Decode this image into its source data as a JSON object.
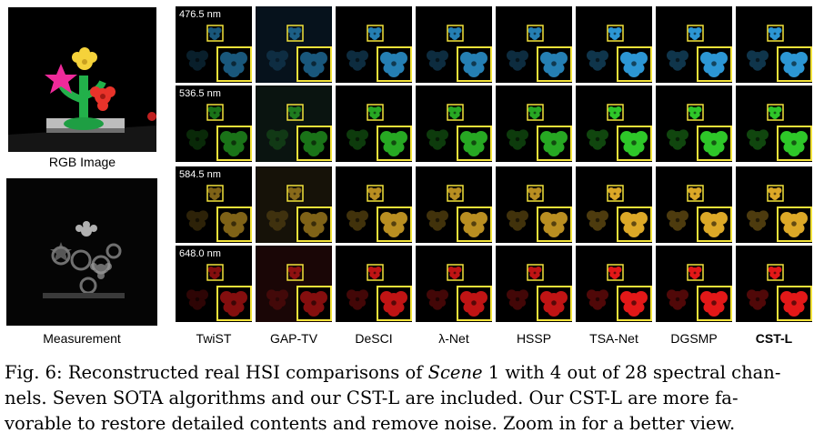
{
  "left_panels": {
    "rgb_label": "RGB Image",
    "measurement_label": "Measurement"
  },
  "wavelengths": [
    "476.5 nm",
    "536.5 nm",
    "584.5 nm",
    "648.0 nm"
  ],
  "row_colors": [
    "#2f9fe0",
    "#31d22c",
    "#e8b22a",
    "#f01a1a"
  ],
  "methods": [
    "TwiST",
    "GAP-TV",
    "DeSCI",
    "λ-Net",
    "HSSP",
    "TSA-Net",
    "DGSMP",
    "CST-L"
  ],
  "caption": {
    "line1_pre": "Fig. 6: Reconstructed real HSI comparisons of ",
    "line1_em": "Scene",
    "line1_post": " 1 with 4 out of 28 spectral chan-",
    "line2": "nels. Seven SOTA algorithms and our CST-L are included. Our CST-L are more fa-",
    "line3": "vorable to restore detailed contents and remove noise. Zoom in for a better view."
  }
}
